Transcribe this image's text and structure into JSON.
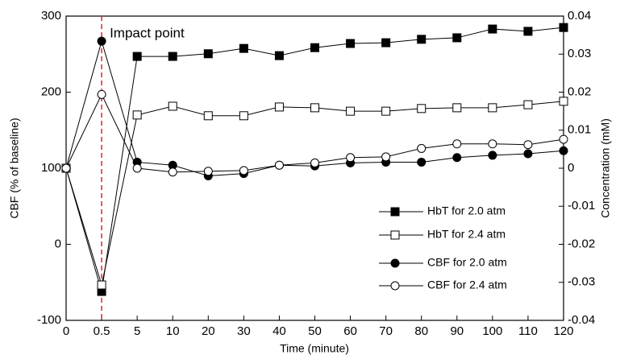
{
  "chart_data": {
    "type": "line",
    "x_label": "Time (minute)",
    "y_label": "CBF (% of baseline)",
    "y2_label": "Concentration (mM)",
    "categories": [
      "0",
      "0.5",
      "5",
      "10",
      "20",
      "30",
      "40",
      "50",
      "60",
      "70",
      "80",
      "90",
      "100",
      "110",
      "120"
    ],
    "ylim": [
      -100,
      300
    ],
    "yticks": [
      -100,
      0,
      100,
      200,
      300
    ],
    "y2lim": [
      -0.04,
      0.04
    ],
    "y2ticks": [
      -0.04,
      -0.03,
      -0.02,
      -0.01,
      0,
      0.01,
      0.02,
      0.03,
      0.04
    ],
    "annotation": {
      "text": "Impact point",
      "x": "0.5",
      "color": "#e8202a"
    },
    "legend": "lower right",
    "series": [
      {
        "name": "HbT for 2.0 atm",
        "color": "#000000",
        "marker": "square",
        "filled": true,
        "axis": "y2",
        "values": [
          0,
          -0.0324,
          0.0294,
          0.0294,
          0.0301,
          0.0315,
          0.0296,
          0.0317,
          0.0328,
          0.033,
          0.0339,
          0.0343,
          0.0366,
          0.036,
          0.037
        ]
      },
      {
        "name": "HbT for 2.4 atm",
        "color": "#000000",
        "marker": "square",
        "filled": false,
        "axis": "y2",
        "values": [
          0,
          -0.0307,
          0.014,
          0.0163,
          0.0138,
          0.0138,
          0.0161,
          0.0159,
          0.015,
          0.015,
          0.0157,
          0.0159,
          0.0159,
          0.0167,
          0.0176
        ]
      },
      {
        "name": "CBF for 2.0 atm",
        "color": "#000000",
        "marker": "circle",
        "filled": true,
        "axis": "y",
        "values": [
          100,
          267,
          108,
          104,
          90,
          93,
          104,
          103,
          107,
          108,
          108,
          114,
          117,
          119,
          123
        ]
      },
      {
        "name": "CBF for 2.4 atm",
        "color": "#000000",
        "marker": "circle",
        "filled": false,
        "axis": "y",
        "values": [
          100,
          197,
          100,
          95,
          96,
          97,
          104,
          107,
          114,
          115,
          126,
          132,
          132,
          131,
          138
        ]
      }
    ]
  }
}
